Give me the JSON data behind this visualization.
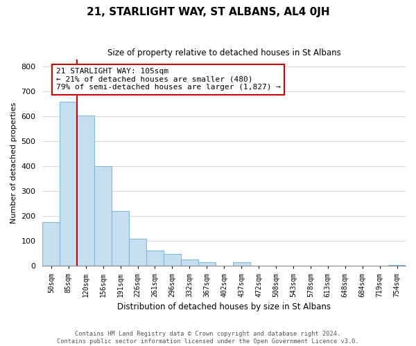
{
  "title": "21, STARLIGHT WAY, ST ALBANS, AL4 0JH",
  "subtitle": "Size of property relative to detached houses in St Albans",
  "xlabel": "Distribution of detached houses by size in St Albans",
  "ylabel": "Number of detached properties",
  "bar_labels": [
    "50sqm",
    "85sqm",
    "120sqm",
    "156sqm",
    "191sqm",
    "226sqm",
    "261sqm",
    "296sqm",
    "332sqm",
    "367sqm",
    "402sqm",
    "437sqm",
    "472sqm",
    "508sqm",
    "543sqm",
    "578sqm",
    "613sqm",
    "648sqm",
    "684sqm",
    "719sqm",
    "754sqm"
  ],
  "bar_heights": [
    175,
    660,
    605,
    400,
    220,
    110,
    62,
    48,
    25,
    14,
    0,
    16,
    0,
    0,
    0,
    0,
    0,
    0,
    0,
    0,
    5
  ],
  "bar_color": "#c6dff0",
  "bar_edge_color": "#7fb8d8",
  "annotation_title": "21 STARLIGHT WAY: 105sqm",
  "annotation_line1": "← 21% of detached houses are smaller (480)",
  "annotation_line2": "79% of semi-detached houses are larger (1,827) →",
  "vline_color": "#cc0000",
  "annotation_box_edge": "#cc0000",
  "ylim": [
    0,
    830
  ],
  "yticks": [
    0,
    100,
    200,
    300,
    400,
    500,
    600,
    700,
    800
  ],
  "footer1": "Contains HM Land Registry data © Crown copyright and database right 2024.",
  "footer2": "Contains public sector information licensed under the Open Government Licence v3.0."
}
